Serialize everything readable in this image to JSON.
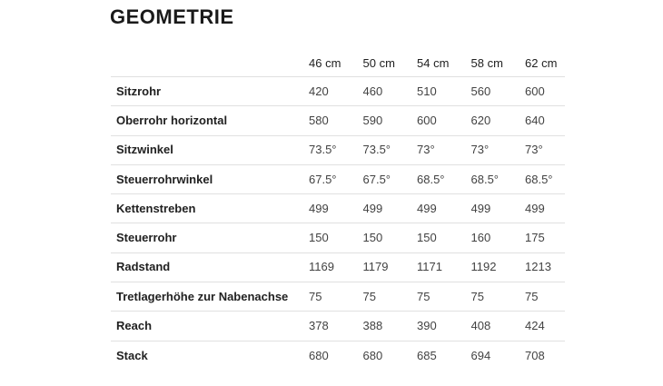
{
  "page": {
    "title": "GEOMETRIE"
  },
  "table": {
    "columns": [
      "46 cm",
      "50 cm",
      "54 cm",
      "58 cm",
      "62 cm"
    ],
    "rows": [
      {
        "label": "Sitzrohr",
        "values": [
          "420",
          "460",
          "510",
          "560",
          "600"
        ]
      },
      {
        "label": "Oberrohr horizontal",
        "values": [
          "580",
          "590",
          "600",
          "620",
          "640"
        ]
      },
      {
        "label": "Sitzwinkel",
        "values": [
          "73.5°",
          "73.5°",
          "73°",
          "73°",
          "73°"
        ]
      },
      {
        "label": "Steuerrohrwinkel",
        "values": [
          "67.5°",
          "67.5°",
          "68.5°",
          "68.5°",
          "68.5°"
        ]
      },
      {
        "label": "Kettenstreben",
        "values": [
          "499",
          "499",
          "499",
          "499",
          "499"
        ]
      },
      {
        "label": "Steuerrohr",
        "values": [
          "150",
          "150",
          "150",
          "160",
          "175"
        ]
      },
      {
        "label": "Radstand",
        "values": [
          "1169",
          "1179",
          "1171",
          "1192",
          "1213"
        ]
      },
      {
        "label": "Tretlagerhöhe zur Nabenachse",
        "values": [
          "75",
          "75",
          "75",
          "75",
          "75"
        ]
      },
      {
        "label": "Reach",
        "values": [
          "378",
          "388",
          "390",
          "408",
          "424"
        ]
      },
      {
        "label": "Stack",
        "values": [
          "680",
          "680",
          "685",
          "694",
          "708"
        ]
      }
    ]
  },
  "colors": {
    "background": "#ffffff",
    "title": "#1a1a1a",
    "label": "#212121",
    "header": "#212121",
    "value": "#424242",
    "divider": "#e0e0e0"
  }
}
